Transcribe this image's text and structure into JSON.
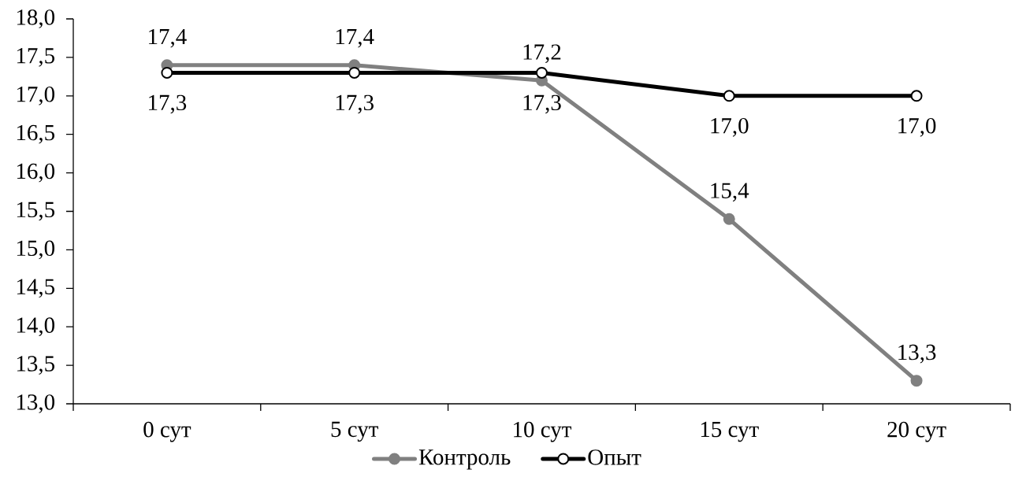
{
  "chart_data": {
    "type": "line",
    "categories": [
      "0 сут",
      "5 сут",
      "10 сут",
      "15 сут",
      "20 сут"
    ],
    "series": [
      {
        "name": "Контроль",
        "color": "#808080",
        "values": [
          17.4,
          17.4,
          17.2,
          15.4,
          13.3
        ],
        "value_labels": [
          "17,4",
          "17,4",
          "17,2",
          "15,4",
          "13,3"
        ]
      },
      {
        "name": "Опыт",
        "color": "#000000",
        "values": [
          17.3,
          17.3,
          17.3,
          17.0,
          17.0
        ],
        "value_labels": [
          "17,3",
          "17,3",
          "17,3",
          "17,0",
          "17,0"
        ]
      }
    ],
    "ylim": [
      13,
      18
    ],
    "yticks": [
      {
        "value": 13,
        "label": "13,0"
      },
      {
        "value": 13.5,
        "label": "13,5"
      },
      {
        "value": 14,
        "label": "14,0"
      },
      {
        "value": 14.5,
        "label": "14,5"
      },
      {
        "value": 15,
        "label": "15,0"
      },
      {
        "value": 15.5,
        "label": "15,5"
      },
      {
        "value": 16,
        "label": "16,0"
      },
      {
        "value": 16.5,
        "label": "16,5"
      },
      {
        "value": 17,
        "label": "17,0"
      },
      {
        "value": 17.5,
        "label": "17,5"
      },
      {
        "value": 18,
        "label": "18,0"
      }
    ],
    "legend": "bottom",
    "marker": "circle",
    "line_style": "solid"
  }
}
